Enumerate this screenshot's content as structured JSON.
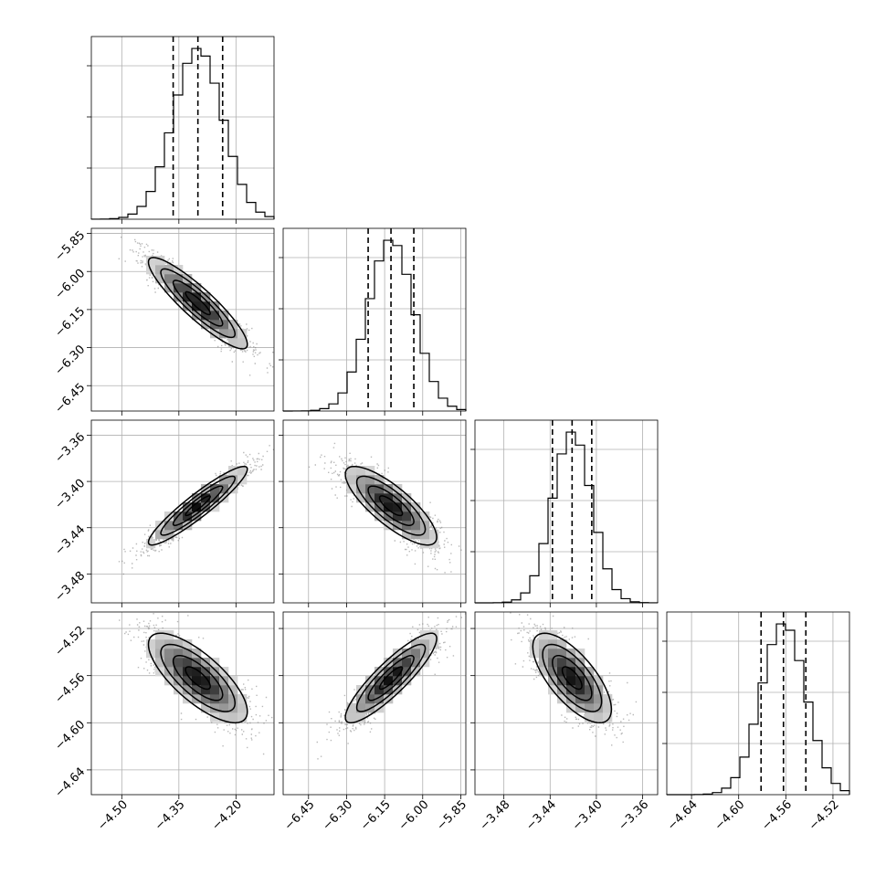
{
  "chart_data": {
    "type": "corner",
    "parameters": [
      {
        "mean": -4.3,
        "sigma": 0.065,
        "range": [
          -4.58,
          -4.1
        ],
        "ticks": [
          -4.5,
          -4.35,
          -4.2
        ],
        "tick_labels": [
          "−4.50",
          "−4.35",
          "−4.20"
        ],
        "quantiles": [
          -4.365,
          -4.3,
          -4.235
        ]
      },
      {
        "mean": -6.125,
        "sigma": 0.09,
        "range": [
          -6.55,
          -5.83
        ],
        "ticks": [
          -6.45,
          -6.3,
          -6.15,
          -6.0,
          -5.85
        ],
        "tick_labels": [
          "−6.45",
          "−6.30",
          "−6.15",
          "−6.00",
          "−5.85"
        ],
        "quantiles": [
          -6.215,
          -6.125,
          -6.035
        ]
      },
      {
        "mean": -3.421,
        "sigma": 0.017,
        "range": [
          -3.505,
          -3.347
        ],
        "ticks": [
          -3.48,
          -3.44,
          -3.4,
          -3.36
        ],
        "tick_labels": [
          "−3.48",
          "−3.44",
          "−3.40",
          "−3.36"
        ],
        "quantiles": [
          -3.438,
          -3.421,
          -3.404
        ]
      },
      {
        "mean": -4.562,
        "sigma": 0.019,
        "range": [
          -4.661,
          -4.506
        ],
        "ticks": [
          -4.64,
          -4.6,
          -4.56,
          -4.52
        ],
        "tick_labels": [
          "−4.64",
          "−4.60",
          "−4.56",
          "−4.52"
        ],
        "quantiles": [
          -4.581,
          -4.562,
          -4.543
        ]
      }
    ],
    "correlations": [
      [
        1.0,
        -0.9,
        0.93,
        -0.75
      ],
      [
        -0.9,
        1.0,
        -0.8,
        0.88
      ],
      [
        0.93,
        -0.8,
        1.0,
        -0.7
      ],
      [
        -0.75,
        0.88,
        -0.7,
        1.0
      ]
    ],
    "hist_bins": 20,
    "contour_levels_sigma": [
      0.5,
      1.0,
      1.5,
      2.0
    ],
    "grid": true,
    "colors": {
      "line": "#000000",
      "points": "#808080",
      "grid": "#b0b0b0"
    }
  }
}
